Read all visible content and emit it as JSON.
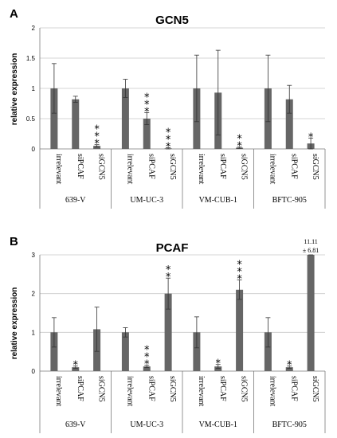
{
  "colors": {
    "bar": "#666666",
    "grid": "#c8c8c8",
    "axis": "#7a7a7a",
    "error": "#333333"
  },
  "chart_data": [
    {
      "type": "bar",
      "panel": "A",
      "title": "GCN5",
      "ylabel": "relative expression",
      "ylim": [
        0,
        2
      ],
      "yticks": [
        "0",
        "0.5",
        "1",
        "1.5",
        "2"
      ],
      "grid": true,
      "groups": [
        "639-V",
        "UM-UC-3",
        "VM-CUB-1",
        "BFTC-905"
      ],
      "categories": [
        "irrelevant",
        "siPCAF",
        "siGCN5"
      ],
      "values": [
        [
          1.0,
          0.82,
          0.05
        ],
        [
          1.0,
          0.5,
          0.01
        ],
        [
          1.0,
          0.93,
          0.02
        ],
        [
          1.0,
          0.82,
          0.09
        ]
      ],
      "errors": [
        [
          0.41,
          0.05,
          0.02
        ],
        [
          0.15,
          0.1,
          0.01
        ],
        [
          0.55,
          0.7,
          0.01
        ],
        [
          0.55,
          0.23,
          0.09
        ]
      ],
      "significance": [
        [
          "",
          "",
          "***"
        ],
        [
          "",
          "***",
          "***"
        ],
        [
          "",
          "",
          "**"
        ],
        [
          "",
          "",
          "*"
        ]
      ],
      "annotations": []
    },
    {
      "type": "bar",
      "panel": "B",
      "title": "PCAF",
      "ylabel": "relative expression",
      "ylim": [
        0,
        3
      ],
      "yticks": [
        "0",
        "1",
        "2",
        "3"
      ],
      "grid": true,
      "groups": [
        "639-V",
        "UM-UC-3",
        "VM-CUB-1",
        "BFTC-905"
      ],
      "categories": [
        "irrelevant",
        "siPCAF",
        "siGCN5"
      ],
      "values": [
        [
          1.0,
          0.1,
          1.08
        ],
        [
          1.0,
          0.12,
          2.0
        ],
        [
          1.0,
          0.12,
          2.1
        ],
        [
          1.0,
          0.1,
          11.11
        ]
      ],
      "errors": [
        [
          0.38,
          0.03,
          0.57
        ],
        [
          0.12,
          0.03,
          0.4
        ],
        [
          0.4,
          0.05,
          0.25
        ],
        [
          0.38,
          0.03,
          6.81
        ]
      ],
      "significance": [
        [
          "",
          "*",
          ""
        ],
        [
          "",
          "***",
          "**"
        ],
        [
          "",
          "*",
          "***"
        ],
        [
          "",
          "*",
          ""
        ]
      ],
      "annotations": [
        {
          "group": 3,
          "category": 2,
          "lines": [
            "11.11",
            "± 6.81"
          ]
        }
      ]
    }
  ]
}
